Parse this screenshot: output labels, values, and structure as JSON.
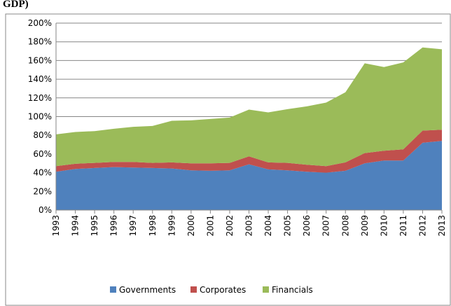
{
  "chart_data": {
    "type": "stacked_area",
    "title": "GDP)",
    "categories": [
      "1993",
      "1994",
      "1995",
      "1996",
      "1997",
      "1998",
      "1999",
      "2000",
      "2001",
      "2002",
      "2003",
      "2004",
      "2005",
      "2006",
      "2007",
      "2008",
      "2009",
      "2010",
      "2011",
      "2012",
      "2013"
    ],
    "series": [
      {
        "name": "Governments",
        "color": "#4f81bd",
        "values": [
          41,
          44,
          45,
          46,
          45.5,
          45,
          44.5,
          42.5,
          42,
          42.5,
          49,
          43.5,
          42.5,
          41,
          40,
          42,
          50,
          53,
          53,
          72,
          74
        ]
      },
      {
        "name": "Corporates",
        "color": "#c0504d",
        "values": [
          6,
          5.5,
          5.5,
          5.5,
          6,
          5.5,
          6.5,
          7.5,
          8,
          8,
          8.5,
          7.5,
          8,
          7.5,
          7,
          9,
          11,
          10.5,
          12,
          13,
          12
        ]
      },
      {
        "name": "Financials",
        "color": "#9bbb59",
        "values": [
          34,
          34,
          34,
          35.5,
          37.5,
          39.5,
          44.5,
          46,
          47.5,
          48.5,
          50,
          53.5,
          57.5,
          62.5,
          68,
          75,
          96,
          89.5,
          93,
          89,
          86
        ]
      }
    ],
    "ylim": [
      0,
      200
    ],
    "yticks": [
      {
        "value": 0,
        "label": "0%"
      },
      {
        "value": 20,
        "label": "20%"
      },
      {
        "value": 40,
        "label": "40%"
      },
      {
        "value": 60,
        "label": "60%"
      },
      {
        "value": 80,
        "label": "80%"
      },
      {
        "value": 100,
        "label": "100%"
      },
      {
        "value": 120,
        "label": "120%"
      },
      {
        "value": 140,
        "label": "140%"
      },
      {
        "value": 160,
        "label": "160%"
      },
      {
        "value": 180,
        "label": "180%"
      },
      {
        "value": 200,
        "label": "200%"
      }
    ],
    "grid": true,
    "legend": "bottom"
  }
}
